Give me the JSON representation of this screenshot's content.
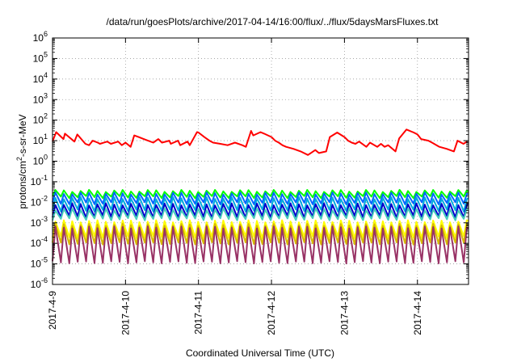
{
  "chart_data": {
    "type": "line",
    "title": "/data/run/goesPlots/archive/2017-04-14/16:00/flux/../flux/5daysMarsFluxes.txt",
    "xlabel": "Coordinated Universal Time (UTC)",
    "ylabel": "protons/cm2-s-sr-MeV",
    "ylabel_parts": {
      "before": "protons/cm",
      "sup": "2",
      "after": "-s-sr-MeV"
    },
    "yscale": "log",
    "ylim": [
      1e-06,
      1000000.0
    ],
    "xlim_days": [
      0,
      5.7
    ],
    "grid": true,
    "legend": "none",
    "y_ticks": [
      {
        "exp": "-6",
        "value": 1e-06
      },
      {
        "exp": "-5",
        "value": 1e-05
      },
      {
        "exp": "-4",
        "value": 0.0001
      },
      {
        "exp": "-3",
        "value": 0.001
      },
      {
        "exp": "-2",
        "value": 0.01
      },
      {
        "exp": "-1",
        "value": 0.1
      },
      {
        "exp": "0",
        "value": 1
      },
      {
        "exp": "1",
        "value": 10
      },
      {
        "exp": "2",
        "value": 100
      },
      {
        "exp": "3",
        "value": 1000.0
      },
      {
        "exp": "4",
        "value": 10000.0
      },
      {
        "exp": "5",
        "value": 100000.0
      },
      {
        "exp": "6",
        "value": 1000000.0
      }
    ],
    "x_ticks": [
      {
        "label": "2017-4-9",
        "day": 0
      },
      {
        "label": "2017-4-10",
        "day": 1
      },
      {
        "label": "2017-4-11",
        "day": 2
      },
      {
        "label": "2017-4-12",
        "day": 3
      },
      {
        "label": "2017-4-13",
        "day": 4
      },
      {
        "label": "2017-4-14",
        "day": 5
      }
    ],
    "series": [
      {
        "color": "#ff0000",
        "x": [
          0,
          0.05,
          0.15,
          0.17,
          0.3,
          0.34,
          0.45,
          0.5,
          0.55,
          0.62,
          0.65,
          0.75,
          0.8,
          0.9,
          0.95,
          1.0,
          1.07,
          1.12,
          1.18,
          1.25,
          1.38,
          1.45,
          1.5,
          1.6,
          1.62,
          1.72,
          1.75,
          1.85,
          1.88,
          1.98,
          2.0,
          2.08,
          2.15,
          2.2,
          2.3,
          2.4,
          2.5,
          2.6,
          2.65,
          2.72,
          2.75,
          2.85,
          2.9,
          3.0,
          3.05,
          3.1,
          3.15,
          3.2,
          3.3,
          3.4,
          3.5,
          3.6,
          3.65,
          3.75,
          3.8,
          3.9,
          4.0,
          4.05,
          4.1,
          4.15,
          4.2,
          4.3,
          4.35,
          4.45,
          4.5,
          4.55,
          4.6,
          4.7,
          4.75,
          4.85,
          4.95,
          5.0,
          5.05,
          5.15,
          5.2,
          5.3,
          5.4,
          5.5,
          5.55,
          5.63,
          5.68
        ],
        "y": [
          9,
          26,
          12,
          22,
          9,
          20,
          7,
          6,
          10,
          8,
          7,
          9,
          7,
          9,
          6,
          8,
          5,
          18,
          15,
          12,
          8,
          12,
          8,
          10,
          7,
          10,
          6,
          9,
          6,
          26,
          25,
          15,
          10,
          8,
          7,
          6,
          8,
          6,
          5,
          30,
          18,
          26,
          22,
          15,
          10,
          8,
          6,
          5,
          4,
          3,
          2,
          3.5,
          2.5,
          3,
          15,
          25,
          15,
          10,
          8,
          7,
          9,
          5,
          8,
          5,
          7,
          5,
          6,
          3,
          13,
          35,
          25,
          20,
          12,
          10,
          8,
          5,
          4,
          3,
          10,
          7,
          9
        ]
      },
      {
        "color": "#00ff00",
        "base": 0.018,
        "amp": 2.0,
        "period": 0.115,
        "peak_frac": 0.35
      },
      {
        "color": "#0066ff",
        "base": 0.009,
        "amp": 3.0,
        "period": 0.115,
        "peak_frac": 0.35
      },
      {
        "color": "#00aadd",
        "base": 0.004,
        "amp": 4.0,
        "period": 0.115,
        "peak_frac": 0.35
      },
      {
        "color": "#0000cc",
        "base": 0.002,
        "amp": 4.0,
        "period": 0.115,
        "peak_frac": 0.35
      },
      {
        "color": "#44ccbb",
        "base": 0.0015,
        "amp": 3.0,
        "period": 0.115,
        "peak_frac": 0.35
      },
      {
        "color": "#ffff00",
        "base": 0.0002,
        "amp": 6.0,
        "period": 0.115,
        "peak_frac": 0.35
      },
      {
        "color": "#d6b800",
        "base": 0.0001,
        "amp": 8.0,
        "period": 0.115,
        "peak_frac": 0.35
      },
      {
        "color": "#993366",
        "base": 1.2e-05,
        "amp": 50.0,
        "period": 0.115,
        "peak_frac": 0.35
      }
    ]
  }
}
